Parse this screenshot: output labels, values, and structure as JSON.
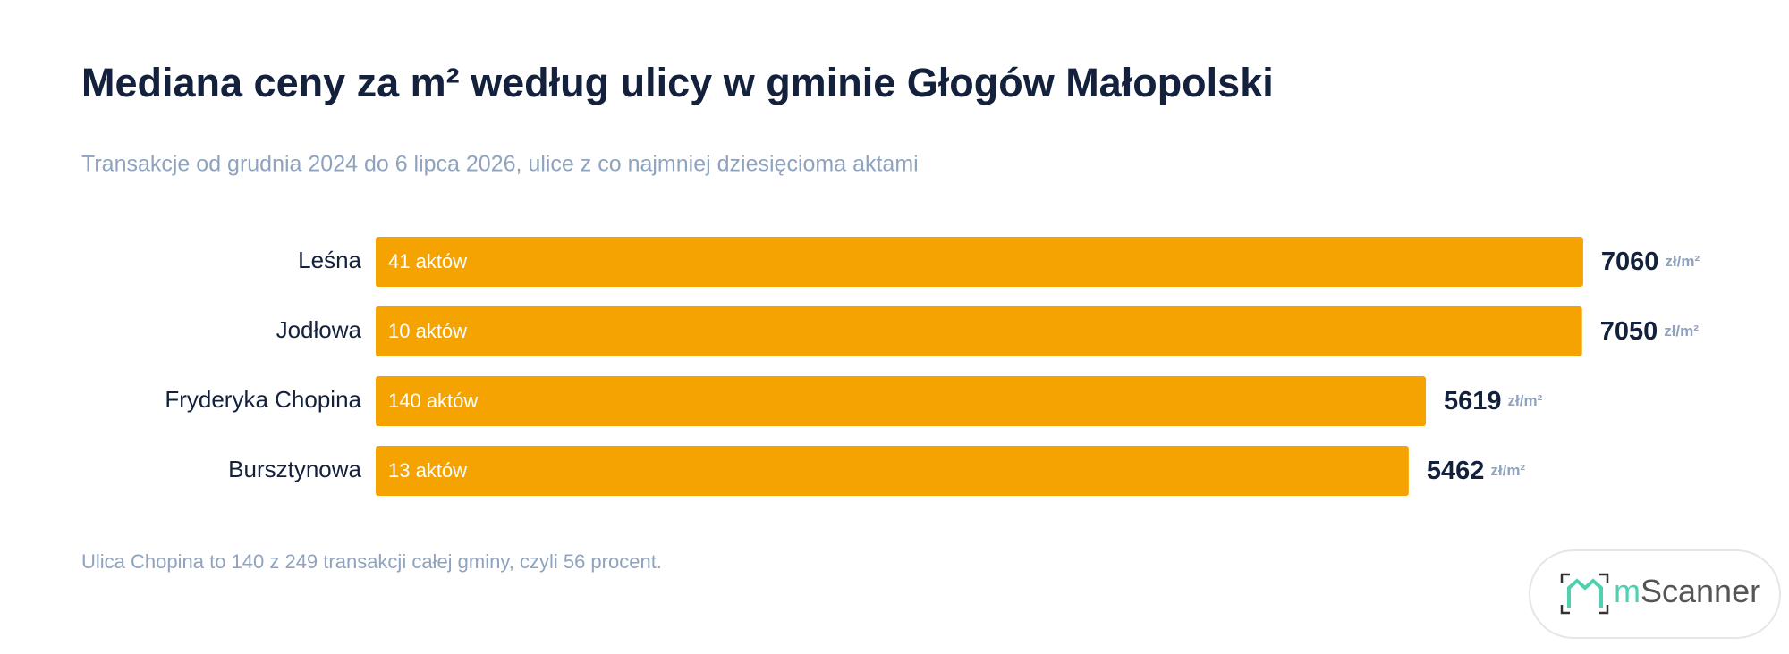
{
  "chart_data": {
    "type": "bar",
    "orientation": "horizontal",
    "title": "Mediana ceny za m² według ulicy w gminie Głogów Małopolski",
    "subtitle": "Transakcje od grudnia 2024 do 6 lipca 2026, ulice z co najmniej dziesięcioma aktami",
    "categories": [
      "Leśna",
      "Jodłowa",
      "Fryderyka Chopina",
      "Bursztynowa"
    ],
    "values": [
      7060,
      7050,
      5619,
      5462
    ],
    "bar_labels": [
      "41 aktów",
      "10 aktów",
      "140 aktów",
      "13 aktów"
    ],
    "unit": "zł/m²",
    "color": "#f5a300",
    "xlim": [
      -4000,
      7200
    ],
    "note": "Ulica Chopina to 140 z 249 transakcji całej gminy, czyli 56 procent."
  },
  "logo": [
    "m",
    "Scanner"
  ]
}
